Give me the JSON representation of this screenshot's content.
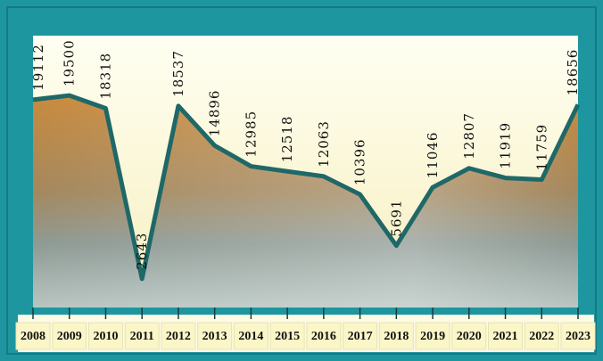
{
  "chart_data": {
    "type": "line",
    "categories": [
      "2008",
      "2009",
      "2010",
      "2011",
      "2012",
      "2013",
      "2014",
      "2015",
      "2016",
      "2017",
      "2018",
      "2019",
      "2020",
      "2021",
      "2022",
      "2023"
    ],
    "values": [
      19112,
      19500,
      18318,
      2643,
      18537,
      14896,
      12985,
      12518,
      12063,
      10396,
      5691,
      11046,
      12807,
      11919,
      11759,
      18656
    ],
    "color": "#1f6868",
    "ylim": [
      0,
      25000
    ]
  }
}
